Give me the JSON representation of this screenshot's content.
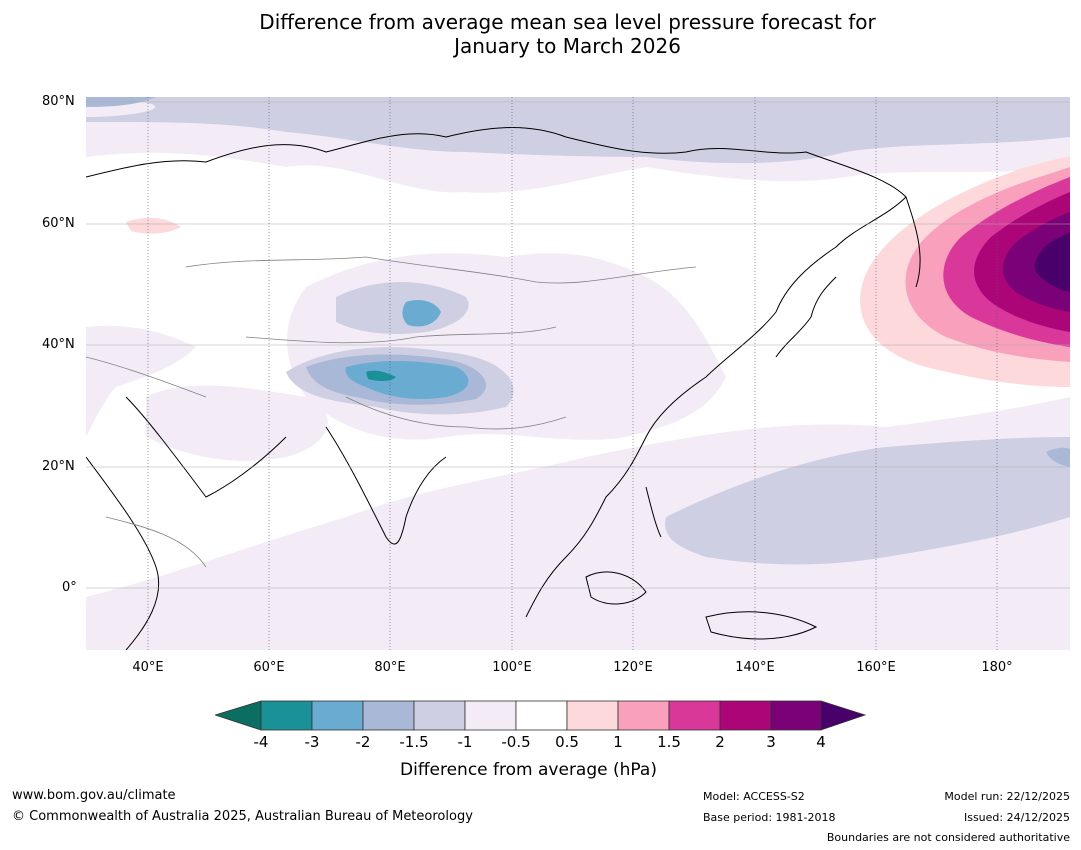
{
  "title": {
    "line1": "Difference from average mean sea level pressure forecast for",
    "line2": "January to March 2026"
  },
  "map": {
    "lat_labels": [
      "80°N",
      "60°N",
      "40°N",
      "20°N",
      "0°"
    ],
    "lon_labels": [
      "40°E",
      "60°E",
      "80°E",
      "100°E",
      "120°E",
      "140°E",
      "160°E",
      "180°"
    ],
    "colors": {
      "c_m4_lo": "#0b6e63",
      "c_m4_m3": "#1a9097",
      "c_m3_m2": "#6aabd2",
      "c_m2_m15": "#a8b8d6",
      "c_m15_m1": "#cfcfe3",
      "c_m1_m05": "#f3ecf6",
      "c_m05_05": "#ffffff",
      "c_05_1": "#fdd9dc",
      "c_1_15": "#f8a0bc",
      "c_15_2": "#d9379a",
      "c_2_3": "#ac0578",
      "c_3_4": "#7a0177",
      "c_gt4": "#4a006a"
    }
  },
  "colorbar": {
    "ticks": [
      "-4",
      "-3",
      "-2",
      "-1.5",
      "-1",
      "-0.5",
      "0.5",
      "1",
      "1.5",
      "2",
      "3",
      "4"
    ],
    "label": "Difference from average (hPa)"
  },
  "footer": {
    "website": "www.bom.gov.au/climate",
    "copyright": "© Commonwealth of Australia 2025, Australian Bureau of Meteorology",
    "model": "Model: ACCESS-S2",
    "base_period": "Base period: 1981-2018",
    "model_run": "Model run: 22/12/2025",
    "issued": "Issued: 24/12/2025",
    "disclaimer": "Boundaries are not considered authoritative"
  }
}
